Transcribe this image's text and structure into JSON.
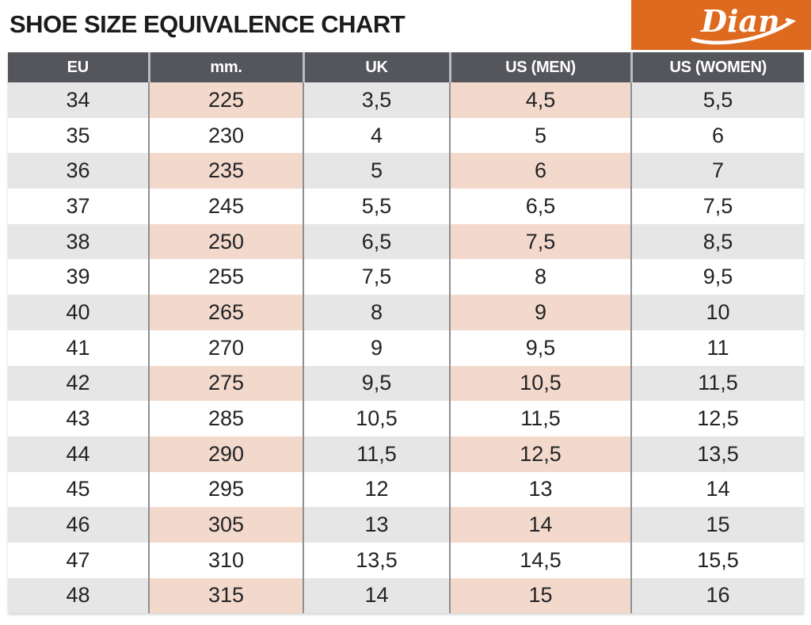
{
  "header": {
    "title": "SHOE SIZE EQUIVALENCE CHART",
    "logo": {
      "text": "Dian"
    }
  },
  "colors": {
    "brand_orange": "#de6a1f",
    "header_bg": "#54565c",
    "header_divider": "#babbbe",
    "row_divider": "#8d8e90",
    "stripe_gray": "#e6e6e7",
    "stripe_pink": "#f3d9cc",
    "text_dark": "#232326",
    "title_color": "#1c1c1e"
  },
  "chart_data": {
    "type": "table",
    "title": "SHOE SIZE EQUIVALENCE CHART",
    "columns": [
      "EU",
      "mm.",
      "UK",
      "US (MEN)",
      "US (WOMEN)"
    ],
    "accent_columns": [
      "mm.",
      "US (MEN)"
    ],
    "rows": [
      [
        "34",
        "225",
        "3,5",
        "4,5",
        "5,5"
      ],
      [
        "35",
        "230",
        "4",
        "5",
        "6"
      ],
      [
        "36",
        "235",
        "5",
        "6",
        "7"
      ],
      [
        "37",
        "245",
        "5,5",
        "6,5",
        "7,5"
      ],
      [
        "38",
        "250",
        "6,5",
        "7,5",
        "8,5"
      ],
      [
        "39",
        "255",
        "7,5",
        "8",
        "9,5"
      ],
      [
        "40",
        "265",
        "8",
        "9",
        "10"
      ],
      [
        "41",
        "270",
        "9",
        "9,5",
        "11"
      ],
      [
        "42",
        "275",
        "9,5",
        "10,5",
        "11,5"
      ],
      [
        "43",
        "285",
        "10,5",
        "11,5",
        "12,5"
      ],
      [
        "44",
        "290",
        "11,5",
        "12,5",
        "13,5"
      ],
      [
        "45",
        "295",
        "12",
        "13",
        "14"
      ],
      [
        "46",
        "305",
        "13",
        "14",
        "15"
      ],
      [
        "47",
        "310",
        "13,5",
        "14,5",
        "15,5"
      ],
      [
        "48",
        "315",
        "14",
        "15",
        "16"
      ]
    ]
  }
}
